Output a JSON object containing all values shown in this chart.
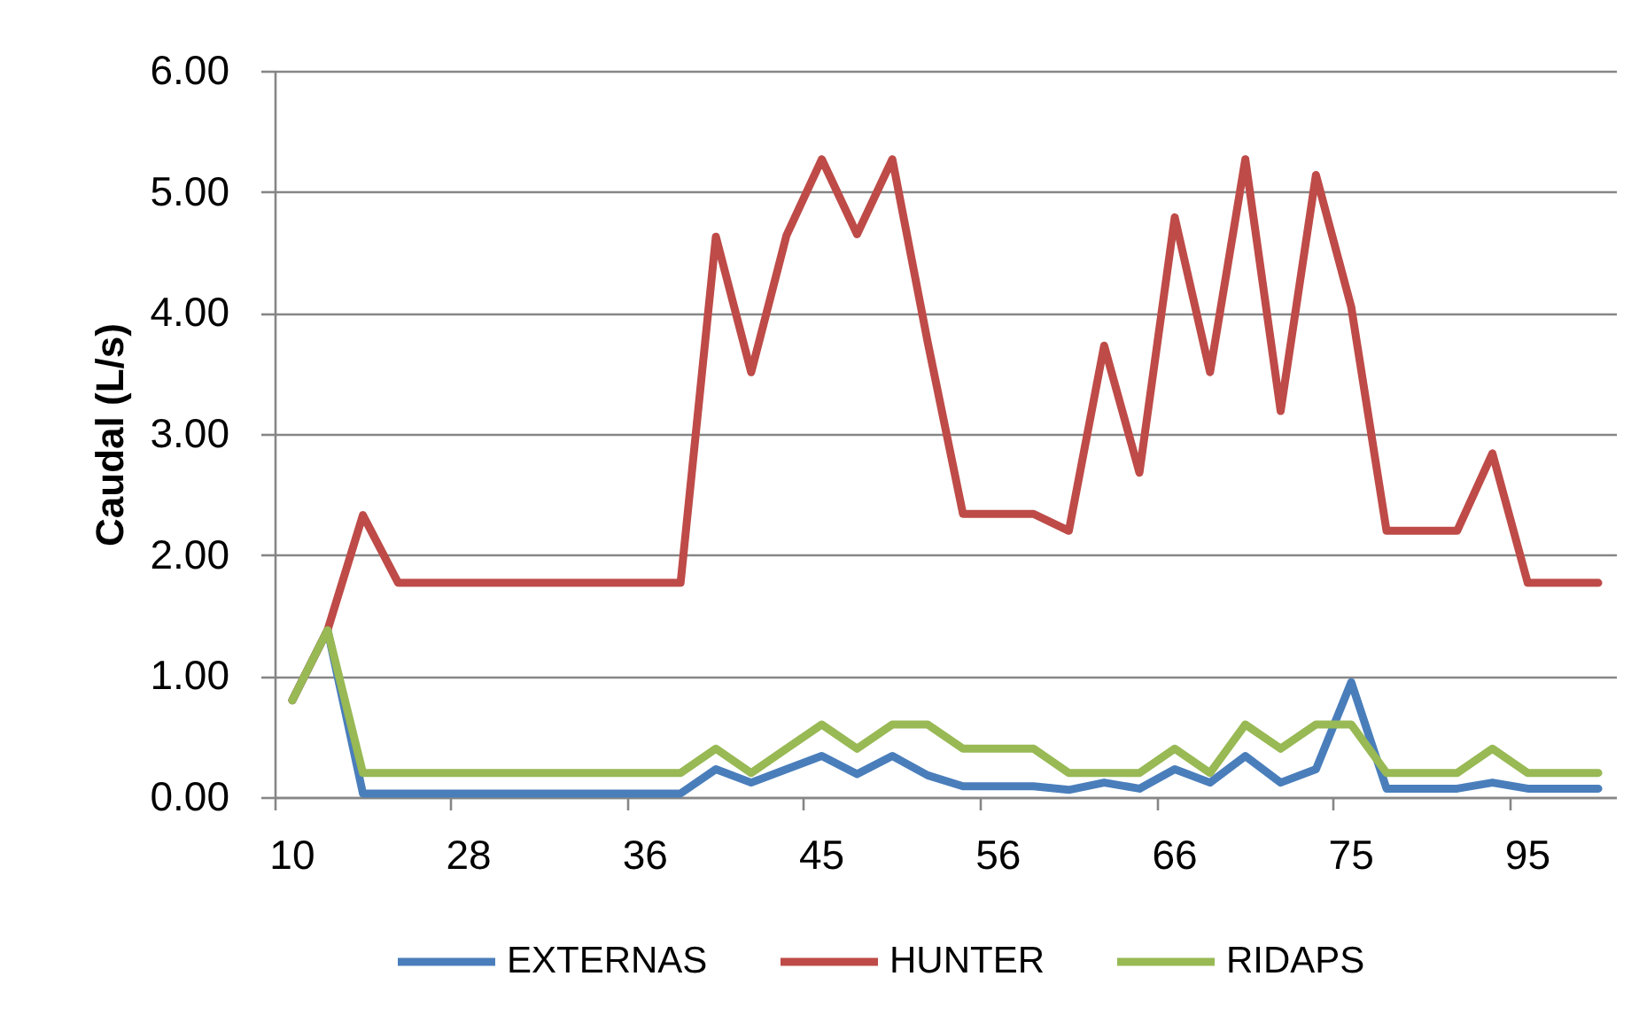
{
  "chart_data": {
    "type": "line",
    "ylabel": "Caudal (L/s)",
    "categories": [
      "10",
      null,
      null,
      null,
      null,
      "28",
      null,
      null,
      null,
      null,
      "36",
      null,
      null,
      null,
      null,
      "45",
      null,
      null,
      null,
      null,
      "56",
      null,
      null,
      null,
      null,
      "66",
      null,
      null,
      null,
      null,
      "75",
      null,
      null,
      null,
      null,
      "95",
      null,
      null
    ],
    "series": [
      {
        "name": "EXTERNAS",
        "color": "#4a7ebb",
        "values": [
          0.8,
          1.38,
          0.03,
          0.03,
          0.03,
          0.03,
          0.03,
          0.03,
          0.03,
          0.03,
          0.03,
          0.03,
          0.23,
          0.12,
          0.23,
          0.34,
          0.19,
          0.34,
          0.18,
          0.09,
          0.09,
          0.09,
          0.06,
          0.12,
          0.07,
          0.23,
          0.12,
          0.34,
          0.12,
          0.23,
          0.95,
          0.07,
          0.07,
          0.07,
          0.12,
          0.07,
          0.07,
          0.07
        ]
      },
      {
        "name": "HUNTER",
        "color": "#be4b48",
        "values": [
          0.8,
          1.38,
          2.33,
          1.77,
          1.77,
          1.77,
          1.77,
          1.77,
          1.77,
          1.77,
          1.77,
          1.77,
          4.63,
          3.51,
          4.64,
          5.27,
          4.65,
          5.27,
          3.76,
          2.34,
          2.34,
          2.34,
          2.2,
          3.73,
          2.68,
          4.79,
          3.51,
          5.27,
          3.19,
          5.14,
          4.05,
          2.2,
          2.2,
          2.2,
          2.84,
          1.77,
          1.77,
          1.77
        ]
      },
      {
        "name": "RIDAPS",
        "color": "#98b954",
        "values": [
          0.8,
          1.38,
          0.2,
          0.2,
          0.2,
          0.2,
          0.2,
          0.2,
          0.2,
          0.2,
          0.2,
          0.2,
          0.4,
          0.2,
          0.4,
          0.6,
          0.4,
          0.6,
          0.6,
          0.4,
          0.4,
          0.4,
          0.2,
          0.2,
          0.2,
          0.4,
          0.2,
          0.6,
          0.4,
          0.6,
          0.6,
          0.2,
          0.2,
          0.2,
          0.4,
          0.2,
          0.2,
          0.2
        ]
      }
    ],
    "ylim": [
      0,
      6
    ],
    "yticks": [
      {
        "value": 0,
        "label": "0.00"
      },
      {
        "value": 1,
        "label": "1.00"
      },
      {
        "value": 2,
        "label": "2.00"
      },
      {
        "value": 3,
        "label": "3.00"
      },
      {
        "value": 4,
        "label": "4.00"
      },
      {
        "value": 5,
        "label": "5.00"
      },
      {
        "value": 6,
        "label": "6.00"
      }
    ],
    "grid": "y",
    "legend": "bottom"
  }
}
